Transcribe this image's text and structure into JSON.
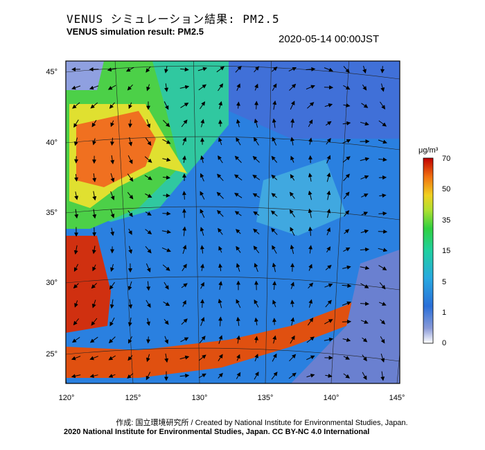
{
  "header": {
    "title_jp": "VENUS シミュレーション結果: PM2.5",
    "title_en": "VENUS simulation result: PM2.5",
    "timestamp": "2020-05-14 00:00JST"
  },
  "map": {
    "lat_ticks": [
      "45°",
      "40°",
      "35°",
      "30°",
      "25°"
    ],
    "lon_ticks": [
      "120°",
      "125°",
      "130°",
      "135°",
      "140°",
      "145°"
    ]
  },
  "colorbar": {
    "unit": "μg/m³",
    "labels": [
      "70",
      "50",
      "35",
      "15",
      "5",
      "1",
      "0"
    ],
    "colors": [
      "#ffffff",
      "#7a8fd0",
      "#2a78d8",
      "#28b0d8",
      "#22d0a0",
      "#30d040",
      "#a0e030",
      "#f0e020",
      "#f08010",
      "#e02000",
      "#b00000"
    ]
  },
  "footer": {
    "credit_line": "作成: 国立環境研究所 / Created by National Institute for Environmental Studies, Japan.",
    "copyright_line": "2020 National Institute for Environmental Studies, Japan. CC BY-NC 4.0 International"
  }
}
